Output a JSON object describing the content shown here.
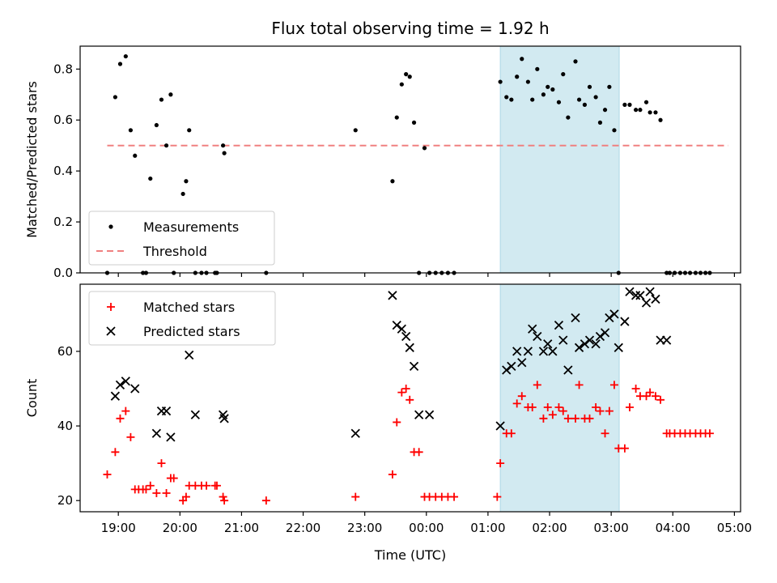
{
  "chart_data": {
    "type": "scatter",
    "title": "Flux total observing time = 1.92 h",
    "xlabel": "Time (UTC)",
    "x_unit": "hours (UTC, past 18:00 of observing night)",
    "x_ticks": [
      {
        "v": 19,
        "label": "19:00"
      },
      {
        "v": 20,
        "label": "20:00"
      },
      {
        "v": 21,
        "label": "21:00"
      },
      {
        "v": 22,
        "label": "22:00"
      },
      {
        "v": 23,
        "label": "23:00"
      },
      {
        "v": 24,
        "label": "00:00"
      },
      {
        "v": 25,
        "label": "01:00"
      },
      {
        "v": 26,
        "label": "02:00"
      },
      {
        "v": 27,
        "label": "03:00"
      },
      {
        "v": 28,
        "label": "04:00"
      },
      {
        "v": 29,
        "label": "05:00"
      }
    ],
    "xlim": [
      18.38,
      29.1
    ],
    "highlight": {
      "x_start": 25.2,
      "x_end": 27.13,
      "color": "#add8e6"
    },
    "colors": {
      "measurement": "#000000",
      "threshold": "#f08080",
      "matched": "#ff0000",
      "predicted": "#000000"
    },
    "panels": [
      {
        "name": "ratio",
        "ylabel": "Matched/Predicted stars",
        "ylim": [
          0,
          0.89
        ],
        "y_ticks": [
          {
            "v": 0.0,
            "label": "0.0"
          },
          {
            "v": 0.2,
            "label": "0.2"
          },
          {
            "v": 0.4,
            "label": "0.4"
          },
          {
            "v": 0.6,
            "label": "0.6"
          },
          {
            "v": 0.8,
            "label": "0.8"
          }
        ],
        "legend": {
          "placement": "lower-left",
          "entries": [
            "Measurements",
            "Threshold"
          ]
        },
        "threshold": {
          "name": "Threshold",
          "y": 0.5,
          "x_range": [
            18.82,
            28.9
          ]
        },
        "series": [
          {
            "name": "Measurements",
            "marker": "dot",
            "x": [
              18.82,
              18.95,
              19.03,
              19.12,
              19.2,
              19.27,
              19.4,
              19.45,
              19.52,
              19.62,
              19.7,
              19.78,
              19.85,
              19.9,
              20.05,
              20.1,
              20.15,
              20.25,
              20.35,
              20.43,
              20.57,
              20.6,
              20.7,
              20.72,
              21.4,
              22.85,
              23.45,
              23.52,
              23.6,
              23.67,
              23.73,
              23.8,
              23.88,
              23.97,
              24.05,
              24.15,
              24.25,
              24.35,
              24.45,
              25.2,
              25.3,
              25.38,
              25.47,
              25.55,
              25.65,
              25.72,
              25.8,
              25.9,
              25.97,
              26.05,
              26.15,
              26.22,
              26.3,
              26.42,
              26.48,
              26.57,
              26.65,
              26.75,
              26.82,
              26.9,
              26.97,
              27.05,
              27.12,
              27.22,
              27.3,
              27.4,
              27.47,
              27.57,
              27.63,
              27.72,
              27.8,
              27.9,
              27.95,
              28.03,
              28.12,
              28.2,
              28.28,
              28.37,
              28.45,
              28.53,
              28.6
            ],
            "y": [
              0.0,
              0.69,
              0.82,
              0.85,
              0.56,
              0.46,
              0.0,
              0.0,
              0.37,
              0.58,
              0.68,
              0.5,
              0.7,
              0.0,
              0.31,
              0.36,
              0.56,
              0.0,
              0.0,
              0.0,
              0.0,
              0.0,
              0.5,
              0.47,
              0.0,
              0.56,
              0.36,
              0.61,
              0.74,
              0.78,
              0.77,
              0.59,
              0.0,
              0.49,
              0.0,
              0.0,
              0.0,
              0.0,
              0.0,
              0.75,
              0.69,
              0.68,
              0.77,
              0.84,
              0.75,
              0.68,
              0.8,
              0.7,
              0.73,
              0.72,
              0.67,
              0.78,
              0.61,
              0.83,
              0.68,
              0.66,
              0.73,
              0.69,
              0.59,
              0.64,
              0.73,
              0.56,
              0.0,
              0.66,
              0.66,
              0.64,
              0.64,
              0.67,
              0.63,
              0.63,
              0.6,
              0.0,
              0.0,
              0.0,
              0.0,
              0.0,
              0.0,
              0.0,
              0.0,
              0.0,
              0.0
            ]
          }
        ]
      },
      {
        "name": "counts",
        "ylabel": "Count",
        "ylim": [
          17,
          78
        ],
        "y_ticks": [
          {
            "v": 20,
            "label": "20"
          },
          {
            "v": 40,
            "label": "40"
          },
          {
            "v": 60,
            "label": "60"
          }
        ],
        "legend": {
          "placement": "upper-left",
          "entries": [
            "Matched stars",
            "Predicted stars"
          ]
        },
        "series": [
          {
            "name": "Matched stars",
            "marker": "plus",
            "x": [
              18.82,
              18.95,
              19.03,
              19.12,
              19.2,
              19.27,
              19.33,
              19.4,
              19.45,
              19.52,
              19.62,
              19.7,
              19.78,
              19.85,
              19.9,
              20.05,
              20.1,
              20.15,
              20.25,
              20.35,
              20.43,
              20.57,
              20.6,
              20.7,
              20.72,
              21.4,
              22.85,
              23.45,
              23.52,
              23.6,
              23.67,
              23.73,
              23.8,
              23.88,
              23.97,
              24.05,
              24.15,
              24.25,
              24.35,
              24.45,
              25.15,
              25.2,
              25.3,
              25.38,
              25.47,
              25.55,
              25.65,
              25.72,
              25.8,
              25.9,
              25.97,
              26.05,
              26.15,
              26.22,
              26.3,
              26.42,
              26.48,
              26.57,
              26.65,
              26.75,
              26.82,
              26.9,
              26.97,
              27.05,
              27.12,
              27.22,
              27.3,
              27.4,
              27.47,
              27.57,
              27.63,
              27.72,
              27.8,
              27.9,
              27.95,
              28.03,
              28.12,
              28.2,
              28.28,
              28.37,
              28.45,
              28.53,
              28.6
            ],
            "y": [
              27,
              33,
              42,
              44,
              37,
              23,
              23,
              23,
              23,
              24,
              22,
              30,
              22,
              26,
              26,
              20,
              21,
              24,
              24,
              24,
              24,
              24,
              24,
              21,
              20,
              20,
              21,
              27,
              41,
              49,
              50,
              47,
              33,
              33,
              21,
              21,
              21,
              21,
              21,
              21,
              21,
              30,
              38,
              38,
              46,
              48,
              45,
              45,
              51,
              42,
              45,
              43,
              45,
              44,
              42,
              42,
              51,
              42,
              42,
              45,
              44,
              38,
              44,
              51,
              34,
              34,
              45,
              50,
              48,
              48,
              49,
              48,
              47,
              38,
              38,
              38,
              38,
              38,
              38,
              38,
              38,
              38,
              38
            ]
          },
          {
            "name": "Predicted stars",
            "marker": "x",
            "x": [
              18.95,
              19.03,
              19.12,
              19.27,
              19.62,
              19.7,
              19.78,
              19.85,
              20.15,
              20.25,
              20.7,
              20.72,
              22.85,
              23.45,
              23.52,
              23.6,
              23.67,
              23.73,
              23.8,
              23.88,
              24.05,
              25.2,
              25.3,
              25.38,
              25.47,
              25.55,
              25.65,
              25.72,
              25.8,
              25.9,
              25.97,
              26.05,
              26.15,
              26.22,
              26.3,
              26.42,
              26.48,
              26.57,
              26.65,
              26.75,
              26.82,
              26.9,
              26.97,
              27.05,
              27.12,
              27.22,
              27.3,
              27.4,
              27.47,
              27.57,
              27.63,
              27.72,
              27.8,
              27.9
            ],
            "y": [
              48,
              51,
              52,
              50,
              38,
              44,
              44,
              37,
              59,
              43,
              43,
              42,
              38,
              75,
              67,
              66,
              64,
              61,
              56,
              43,
              43,
              40,
              55,
              56,
              60,
              57,
              60,
              66,
              64,
              60,
              62,
              60,
              67,
              63,
              55,
              69,
              61,
              62,
              63,
              62,
              64,
              65,
              69,
              70,
              61,
              68,
              76,
              75,
              75,
              73,
              76,
              74,
              63,
              63
            ]
          }
        ]
      }
    ]
  }
}
